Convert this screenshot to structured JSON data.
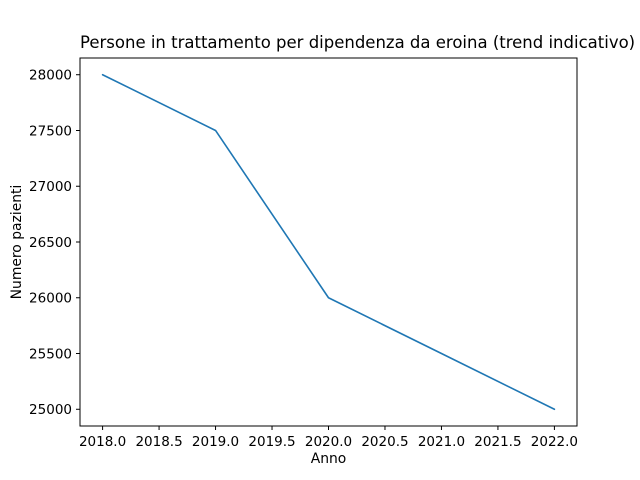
{
  "colors": {
    "background": "#ffffff",
    "axis": "#000000",
    "text": "#000000",
    "line": "#1f77b4"
  },
  "chart_data": {
    "type": "line",
    "title": "Persone in trattamento per dipendenza da eroina (trend indicativo)",
    "xlabel": "Anno",
    "ylabel": "Numero pazienti",
    "x": [
      2018,
      2019,
      2020,
      2021,
      2022
    ],
    "series": [
      {
        "name": "Numero pazienti",
        "values": [
          28000,
          27500,
          26000,
          25500,
          25000
        ],
        "color": "#1f77b4"
      }
    ],
    "xlim": [
      2017.8,
      2022.2
    ],
    "ylim": [
      24850,
      28150
    ],
    "xticks": [
      2018.0,
      2018.5,
      2019.0,
      2019.5,
      2020.0,
      2020.5,
      2021.0,
      2021.5,
      2022.0
    ],
    "xtick_labels": [
      "2018.0",
      "2018.5",
      "2019.0",
      "2019.5",
      "2020.0",
      "2020.5",
      "2021.0",
      "2021.5",
      "2022.0"
    ],
    "yticks": [
      25000,
      25500,
      26000,
      26500,
      27000,
      27500,
      28000
    ],
    "ytick_labels": [
      "25000",
      "25500",
      "26000",
      "26500",
      "27000",
      "27500",
      "28000"
    ],
    "grid": false,
    "legend": null,
    "markers": false
  }
}
